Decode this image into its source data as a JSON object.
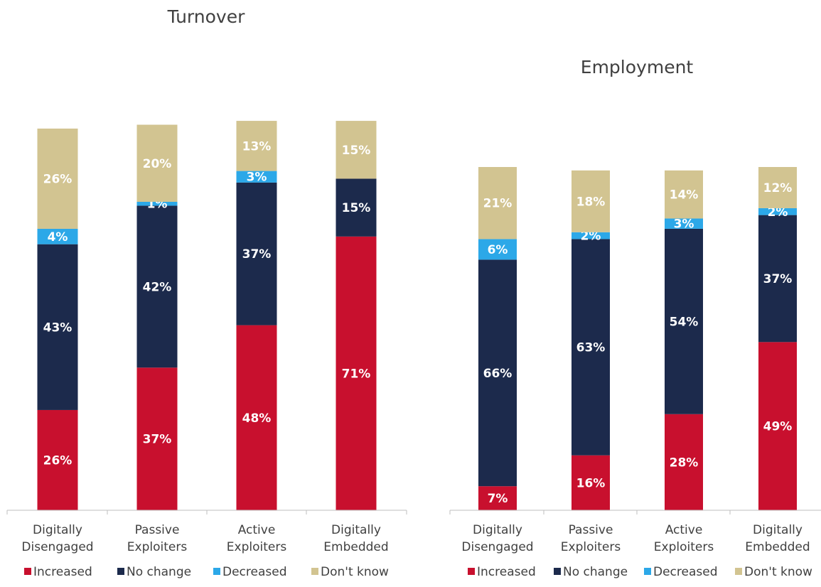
{
  "series_colors": {
    "Increased": "#c8102e",
    "No change": "#1c2a4c",
    "Decreased": "#2ca8e8",
    "Don't know": "#d2c491"
  },
  "chart_data": [
    {
      "type": "bar",
      "stacked": true,
      "title": "Turnover",
      "categories": [
        [
          "Digitally",
          "Disengaged"
        ],
        [
          "Passive",
          "Exploiters"
        ],
        [
          "Active",
          "Exploiters"
        ],
        [
          "Digitally",
          "Embedded"
        ]
      ],
      "ylim": [
        0,
        100
      ],
      "grid": false,
      "legend_position": "bottom",
      "series": [
        {
          "name": "Increased",
          "values": [
            26,
            37,
            48,
            71
          ],
          "labels": [
            "26%",
            "37%",
            "48%",
            "71%"
          ]
        },
        {
          "name": "No change",
          "values": [
            43,
            42,
            37,
            15
          ],
          "labels": [
            "43%",
            "42%",
            "37%",
            "15%"
          ]
        },
        {
          "name": "Decreased",
          "values": [
            4,
            1,
            3,
            0
          ],
          "labels": [
            "4%",
            "1%",
            "3%",
            ""
          ]
        },
        {
          "name": "Don't know",
          "values": [
            26,
            20,
            13,
            15
          ],
          "labels": [
            "26%",
            "20%",
            "13%",
            "15%"
          ]
        }
      ]
    },
    {
      "type": "bar",
      "stacked": true,
      "title": "Employment",
      "categories": [
        [
          "Digitally",
          "Disengaged"
        ],
        [
          "Passive",
          "Exploiters"
        ],
        [
          "Active",
          "Exploiters"
        ],
        [
          "Digitally",
          "Embedded"
        ]
      ],
      "ylim": [
        0,
        100
      ],
      "grid": false,
      "legend_position": "bottom",
      "series": [
        {
          "name": "Increased",
          "values": [
            7,
            16,
            28,
            49
          ],
          "labels": [
            "7%",
            "16%",
            "28%",
            "49%"
          ]
        },
        {
          "name": "No change",
          "values": [
            66,
            63,
            54,
            37
          ],
          "labels": [
            "66%",
            "63%",
            "54%",
            "37%"
          ]
        },
        {
          "name": "Decreased",
          "values": [
            6,
            2,
            3,
            2
          ],
          "labels": [
            "6%",
            "2%",
            "3%",
            "2%"
          ]
        },
        {
          "name": "Don't know",
          "values": [
            21,
            18,
            14,
            12
          ],
          "labels": [
            "21%",
            "18%",
            "14%",
            "12%"
          ]
        }
      ]
    }
  ]
}
